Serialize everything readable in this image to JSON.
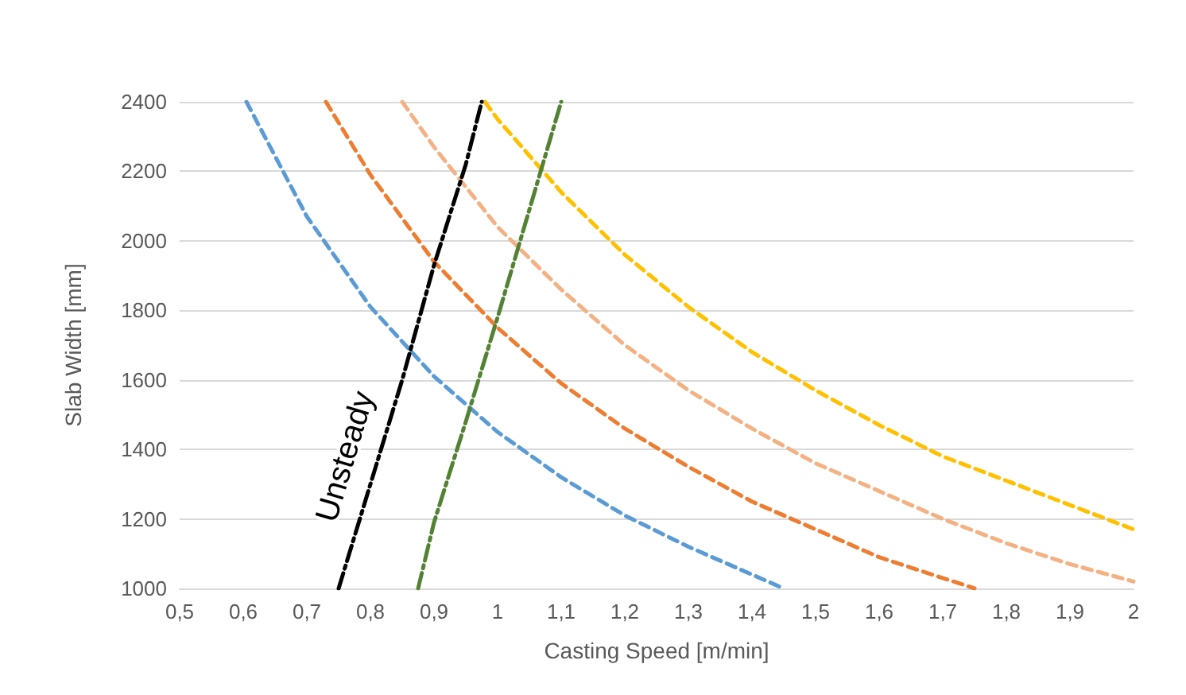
{
  "chart_data": {
    "type": "line",
    "xlabel": "Casting Speed [m/min]",
    "ylabel": "Slab Width [mm]",
    "xlim": [
      0.5,
      2
    ],
    "xticks": [
      {
        "value": 0.5,
        "label": "0,5"
      },
      {
        "value": 0.6,
        "label": "0,6"
      },
      {
        "value": 0.7,
        "label": "0,7"
      },
      {
        "value": 0.8,
        "label": "0,8"
      },
      {
        "value": 0.9,
        "label": "0,9"
      },
      1,
      {
        "value": 1.1,
        "label": "1,1"
      },
      {
        "value": 1.2,
        "label": "1,2"
      },
      {
        "value": 1.3,
        "label": "1,3"
      },
      {
        "value": 1.4,
        "label": "1,4"
      },
      {
        "value": 1.5,
        "label": "1,5"
      },
      {
        "value": 1.6,
        "label": "1,6"
      },
      {
        "value": 1.7,
        "label": "1,7"
      },
      {
        "value": 1.8,
        "label": "1,8"
      },
      {
        "value": 1.9,
        "label": "1,9"
      },
      2
    ],
    "ylim": [
      1000,
      2400
    ],
    "yticks": [
      1000,
      1200,
      1400,
      1600,
      1800,
      2000,
      2200,
      2400
    ],
    "grid": "y",
    "marker": "none",
    "series": [
      {
        "color": "#5b9bd5",
        "line_style": "dashed",
        "x": [
          0.605,
          0.7,
          0.8,
          0.9,
          1.0,
          1.1,
          1.2,
          1.3,
          1.4,
          1.45
        ],
        "values": [
          2400,
          2070,
          1810,
          1610,
          1450,
          1320,
          1210,
          1120,
          1040,
          1000
        ]
      },
      {
        "color": "#ed7d31",
        "line_style": "dashed",
        "x": [
          0.73,
          0.8,
          0.9,
          1.0,
          1.1,
          1.2,
          1.3,
          1.4,
          1.5,
          1.6,
          1.7,
          1.75
        ],
        "values": [
          2400,
          2190,
          1940,
          1750,
          1590,
          1460,
          1350,
          1250,
          1170,
          1090,
          1030,
          1000
        ]
      },
      {
        "color": "#f4b183",
        "line_style": "dashed",
        "x": [
          0.85,
          0.9,
          1.0,
          1.1,
          1.2,
          1.3,
          1.4,
          1.5,
          1.6,
          1.7,
          1.8,
          1.9,
          2.0
        ],
        "values": [
          2400,
          2270,
          2040,
          1860,
          1700,
          1570,
          1460,
          1360,
          1280,
          1200,
          1130,
          1070,
          1020
        ]
      },
      {
        "color": "#ffc000",
        "line_style": "dashed",
        "x": [
          0.98,
          1.0,
          1.1,
          1.2,
          1.3,
          1.4,
          1.5,
          1.6,
          1.7,
          1.8,
          1.9,
          2.0
        ],
        "values": [
          2400,
          2350,
          2140,
          1960,
          1810,
          1680,
          1570,
          1470,
          1380,
          1310,
          1240,
          1170
        ]
      },
      {
        "color": "#000000",
        "line_style": "dashdot",
        "x": [
          0.75,
          0.8,
          0.85,
          0.9,
          0.95,
          0.975
        ],
        "values": [
          1000,
          1300,
          1600,
          1930,
          2220,
          2400
        ]
      },
      {
        "color": "#548235",
        "line_style": "dashdot",
        "x": [
          0.875,
          0.9,
          0.95,
          1.0,
          1.05,
          1.1
        ],
        "values": [
          1000,
          1190,
          1480,
          1780,
          2090,
          2400
        ]
      }
    ],
    "annotations": [
      "Unsteady"
    ]
  }
}
